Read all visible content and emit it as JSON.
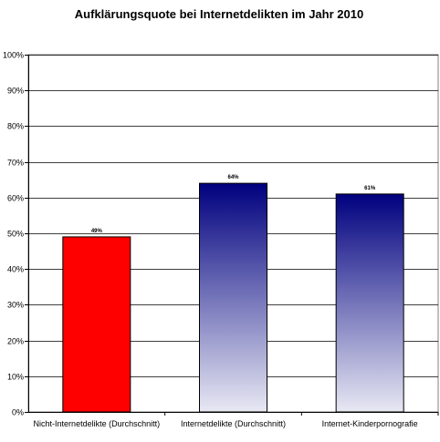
{
  "chart_data": {
    "type": "bar",
    "title": "Aufklärungsquote bei Internetdelikten im Jahr 2010",
    "xlabel": "",
    "ylabel": "",
    "ylim": [
      0,
      100
    ],
    "y_ticks": [
      "0%",
      "10%",
      "20%",
      "30%",
      "40%",
      "50%",
      "60%",
      "70%",
      "80%",
      "90%",
      "100%"
    ],
    "grid": true,
    "legend": "none",
    "categories": [
      "Nicht-Internetdelikte (Durchschnitt)",
      "Internetdelikte (Durchschnitt)",
      "Internet-Kinderpornografie"
    ],
    "values": [
      49,
      64,
      61
    ],
    "value_labels": [
      "49%",
      "64%",
      "61%"
    ],
    "colors": {
      "bar_1": "#ff0000",
      "bar_gradient_top": "#00007f",
      "bar_gradient_bottom": "#e8e8f4",
      "grid": "#000000",
      "plot_background": "#ffffff"
    }
  }
}
